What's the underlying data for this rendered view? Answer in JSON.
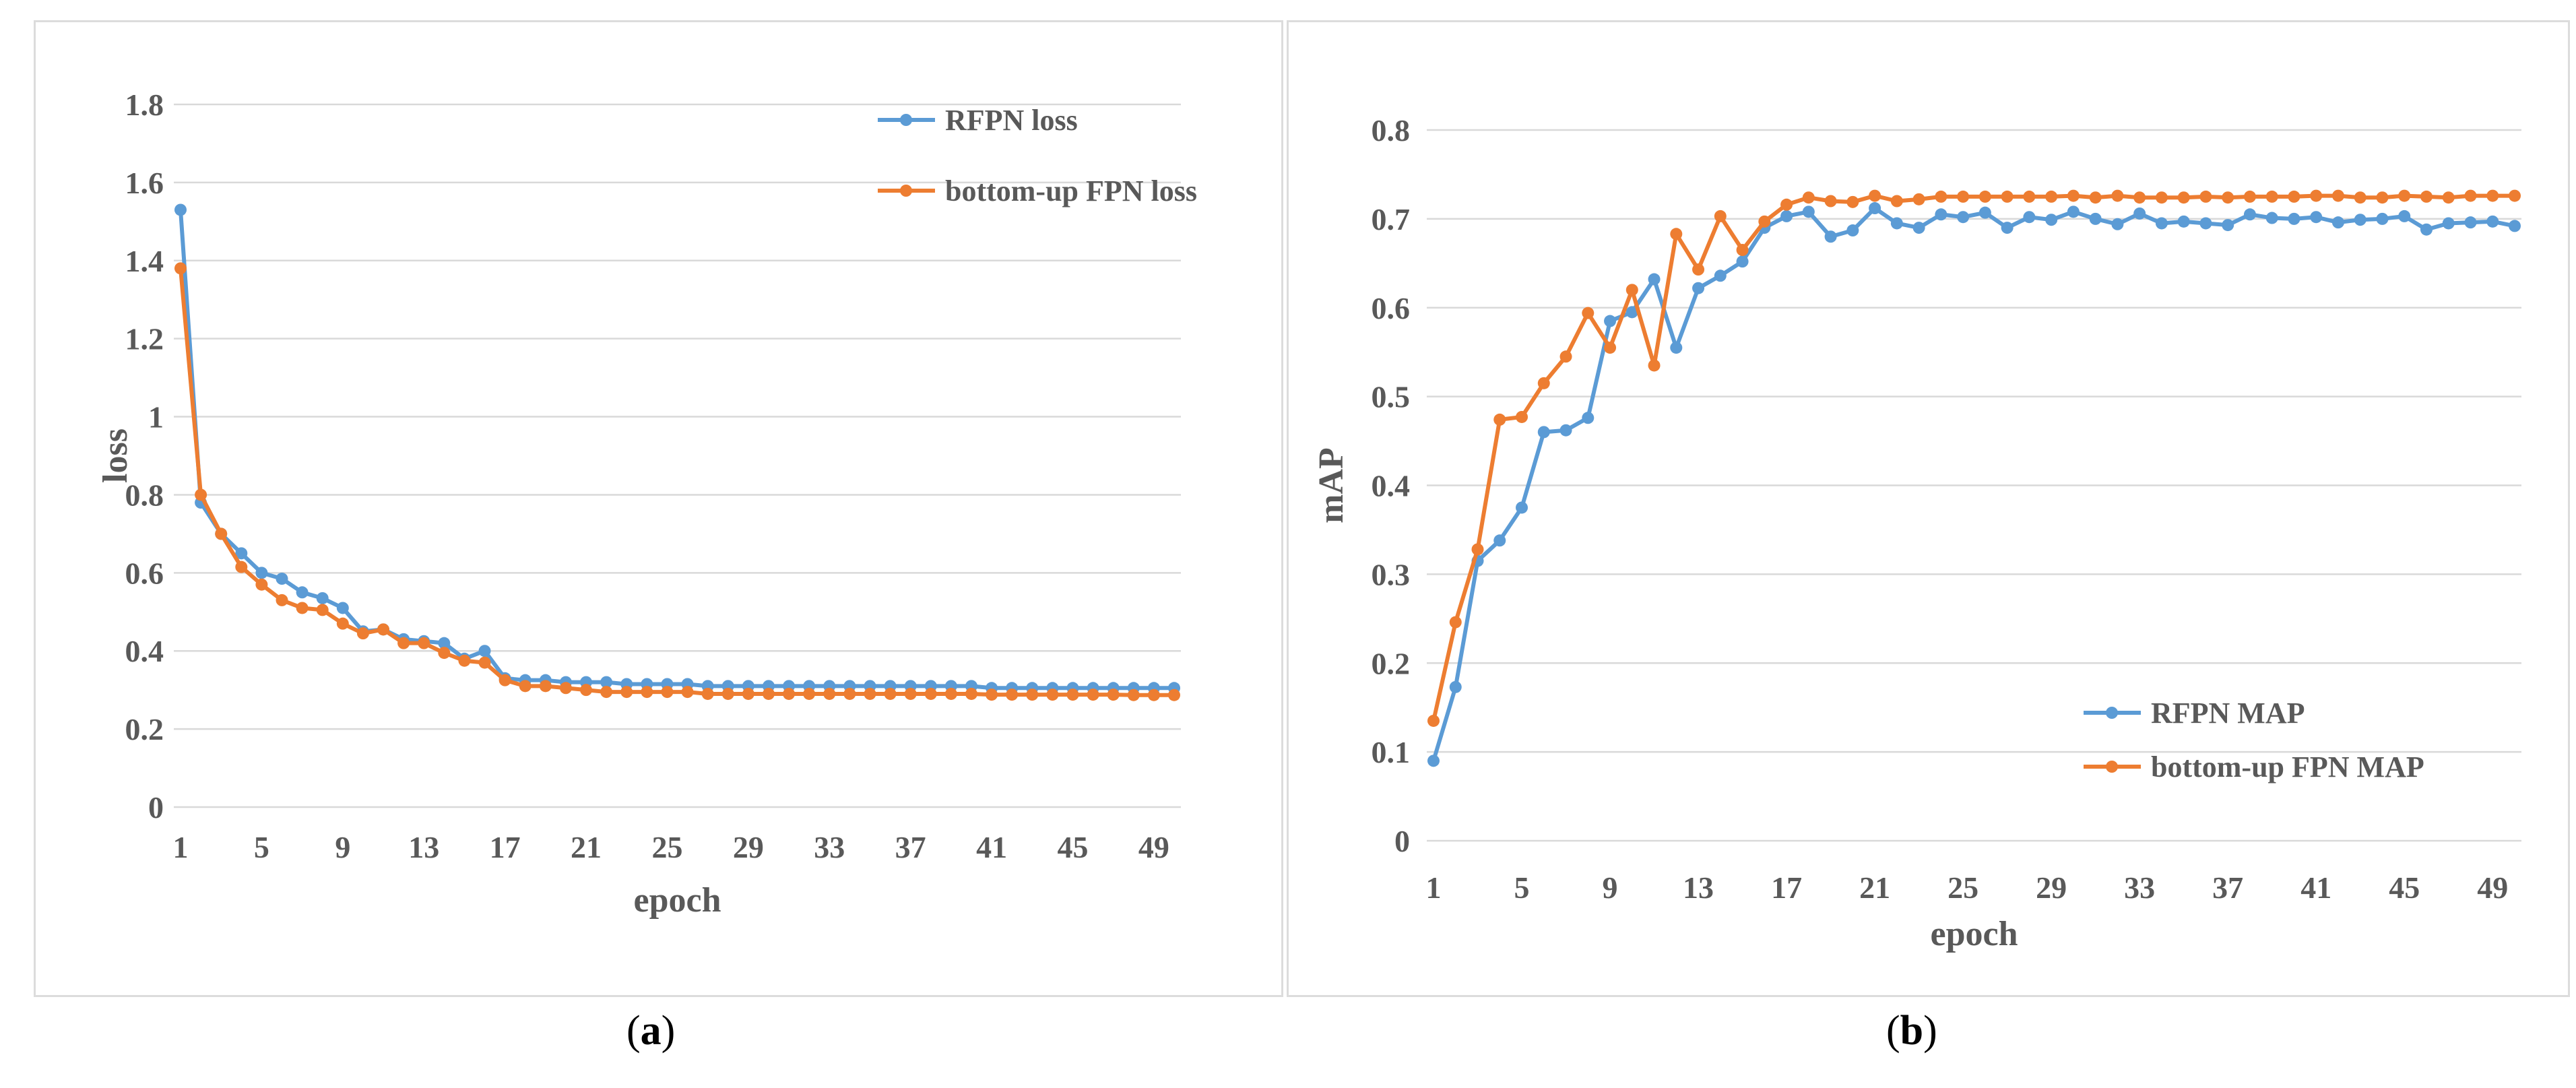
{
  "chart_data": [
    {
      "type": "line",
      "caption_letter": "a",
      "xlabel": "epoch",
      "ylabel": "loss",
      "ylim": [
        0,
        1.8
      ],
      "yticks": [
        "0",
        "0.2",
        "0.4",
        "0.6",
        "0.8",
        "1",
        "1.2",
        "1.4",
        "1.6",
        "1.8"
      ],
      "xticks": [
        "1",
        "5",
        "9",
        "13",
        "17",
        "21",
        "25",
        "29",
        "33",
        "37",
        "41",
        "45",
        "49"
      ],
      "x": [
        1,
        2,
        3,
        4,
        5,
        6,
        7,
        8,
        9,
        10,
        11,
        12,
        13,
        14,
        15,
        16,
        17,
        18,
        19,
        20,
        21,
        22,
        23,
        24,
        25,
        26,
        27,
        28,
        29,
        30,
        31,
        32,
        33,
        34,
        35,
        36,
        37,
        38,
        39,
        40,
        41,
        42,
        43,
        44,
        45,
        46,
        47,
        48,
        49,
        50
      ],
      "legend_position": "top-right",
      "series": [
        {
          "name": "RFPN loss",
          "color": "#5b9bd5",
          "values": [
            1.53,
            0.78,
            0.7,
            0.65,
            0.6,
            0.585,
            0.55,
            0.535,
            0.51,
            0.45,
            0.455,
            0.43,
            0.425,
            0.42,
            0.38,
            0.4,
            0.33,
            0.325,
            0.325,
            0.32,
            0.32,
            0.32,
            0.315,
            0.315,
            0.315,
            0.315,
            0.31,
            0.31,
            0.31,
            0.31,
            0.31,
            0.31,
            0.31,
            0.31,
            0.31,
            0.31,
            0.31,
            0.31,
            0.31,
            0.31,
            0.305,
            0.305,
            0.305,
            0.305,
            0.305,
            0.305,
            0.305,
            0.305,
            0.305,
            0.305
          ]
        },
        {
          "name": "bottom-up FPN loss",
          "color": "#ed7d31",
          "values": [
            1.38,
            0.8,
            0.7,
            0.615,
            0.57,
            0.53,
            0.51,
            0.505,
            0.47,
            0.445,
            0.455,
            0.42,
            0.42,
            0.395,
            0.375,
            0.37,
            0.325,
            0.31,
            0.31,
            0.305,
            0.3,
            0.295,
            0.295,
            0.295,
            0.295,
            0.295,
            0.29,
            0.29,
            0.29,
            0.29,
            0.29,
            0.29,
            0.29,
            0.29,
            0.29,
            0.29,
            0.29,
            0.29,
            0.29,
            0.29,
            0.288,
            0.288,
            0.288,
            0.288,
            0.288,
            0.288,
            0.288,
            0.287,
            0.287,
            0.287
          ]
        }
      ]
    },
    {
      "type": "line",
      "caption_letter": "b",
      "xlabel": "epoch",
      "ylabel": "mAP",
      "ylim": [
        0,
        0.8
      ],
      "yticks": [
        "0",
        "0.1",
        "0.2",
        "0.3",
        "0.4",
        "0.5",
        "0.6",
        "0.7",
        "0.8"
      ],
      "xticks": [
        "1",
        "5",
        "9",
        "13",
        "17",
        "21",
        "25",
        "29",
        "33",
        "37",
        "41",
        "45",
        "49"
      ],
      "x": [
        1,
        2,
        3,
        4,
        5,
        6,
        7,
        8,
        9,
        10,
        11,
        12,
        13,
        14,
        15,
        16,
        17,
        18,
        19,
        20,
        21,
        22,
        23,
        24,
        25,
        26,
        27,
        28,
        29,
        30,
        31,
        32,
        33,
        34,
        35,
        36,
        37,
        38,
        39,
        40,
        41,
        42,
        43,
        44,
        45,
        46,
        47,
        48,
        49,
        50
      ],
      "legend_position": "bottom-right",
      "series": [
        {
          "name": "RFPN MAP",
          "color": "#5b9bd5",
          "values": [
            0.09,
            0.173,
            0.315,
            0.338,
            0.375,
            0.46,
            0.462,
            0.476,
            0.585,
            0.595,
            0.632,
            0.555,
            0.622,
            0.636,
            0.652,
            0.69,
            0.703,
            0.708,
            0.68,
            0.687,
            0.712,
            0.695,
            0.69,
            0.705,
            0.702,
            0.707,
            0.69,
            0.702,
            0.699,
            0.708,
            0.7,
            0.694,
            0.706,
            0.695,
            0.697,
            0.695,
            0.693,
            0.705,
            0.701,
            0.7,
            0.702,
            0.696,
            0.699,
            0.7,
            0.703,
            0.688,
            0.695,
            0.696,
            0.697,
            0.692
          ]
        },
        {
          "name": "bottom-up FPN MAP",
          "color": "#ed7d31",
          "values": [
            0.135,
            0.246,
            0.328,
            0.474,
            0.477,
            0.515,
            0.545,
            0.594,
            0.555,
            0.62,
            0.535,
            0.683,
            0.643,
            0.703,
            0.665,
            0.697,
            0.716,
            0.724,
            0.72,
            0.719,
            0.726,
            0.72,
            0.722,
            0.725,
            0.725,
            0.725,
            0.725,
            0.725,
            0.725,
            0.726,
            0.724,
            0.726,
            0.724,
            0.724,
            0.724,
            0.725,
            0.724,
            0.725,
            0.725,
            0.725,
            0.726,
            0.726,
            0.724,
            0.724,
            0.726,
            0.725,
            0.724,
            0.726,
            0.726,
            0.726
          ]
        }
      ]
    }
  ]
}
